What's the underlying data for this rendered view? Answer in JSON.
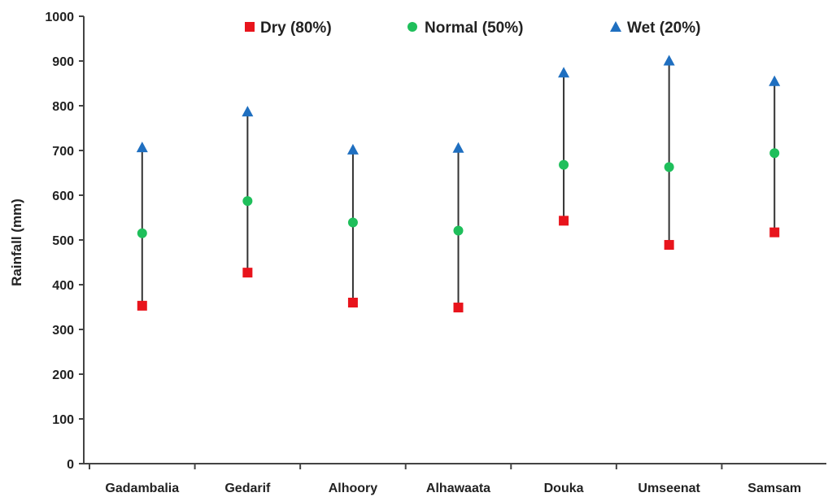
{
  "chart_data": {
    "type": "scatter",
    "title": "",
    "xlabel": "",
    "ylabel": "Rainfall (mm)",
    "ylim": [
      0,
      1000
    ],
    "yticks": [
      0,
      100,
      200,
      300,
      400,
      500,
      600,
      700,
      800,
      900,
      1000
    ],
    "grid": false,
    "legend_position": "top",
    "categories": [
      "Gadambalia",
      "Gedarif",
      "Alhoory",
      "Alhawaata",
      "Douka",
      "Umseenat",
      "Samsam"
    ],
    "series": [
      {
        "name": "Dry (80%)",
        "marker": "square",
        "color": "#e8141c",
        "values": [
          353,
          427,
          360,
          349,
          543,
          489,
          517
        ]
      },
      {
        "name": "Normal (50%)",
        "marker": "circle",
        "color": "#1fbf5b",
        "values": [
          515,
          587,
          539,
          521,
          668,
          663,
          694
        ]
      },
      {
        "name": "Wet (20%)",
        "marker": "triangle",
        "color": "#1f6fc0",
        "values": [
          707,
          787,
          702,
          706,
          874,
          901,
          855
        ]
      }
    ],
    "range_line_color": "#333333"
  }
}
